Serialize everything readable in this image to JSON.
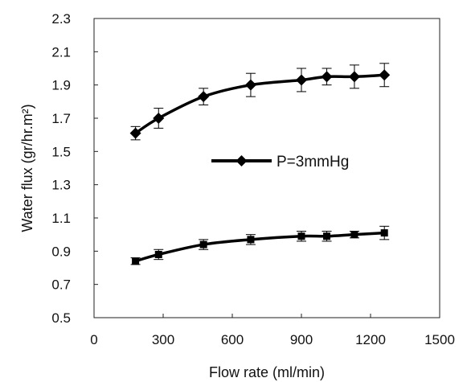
{
  "chart_data": {
    "type": "line",
    "xlabel": "Flow rate (ml/min)",
    "ylabel": "Water flux (gr/hr.m²)",
    "xlim": [
      0,
      1500
    ],
    "ylim": [
      0.5,
      2.3
    ],
    "x_ticks": [
      "0",
      "300",
      "600",
      "900",
      "1200",
      "1500"
    ],
    "y_ticks": [
      "0.5",
      "0.7",
      "0.9",
      "1.1",
      "1.3",
      "1.5",
      "1.7",
      "1.9",
      "2.1",
      "2.3"
    ],
    "grid": false,
    "legend_position": "center-right",
    "series": [
      {
        "name": "P=3mmHg",
        "marker": "diamond",
        "color": "#000000",
        "x": [
          180,
          280,
          475,
          680,
          900,
          1010,
          1130,
          1260
        ],
        "y": [
          1.61,
          1.7,
          1.83,
          1.9,
          1.93,
          1.95,
          1.95,
          1.96
        ],
        "error": [
          0.04,
          0.06,
          0.05,
          0.07,
          0.07,
          0.05,
          0.07,
          0.07
        ]
      },
      {
        "marker": "square",
        "color": "#000000",
        "x": [
          180,
          280,
          475,
          680,
          900,
          1010,
          1130,
          1260
        ],
        "y": [
          0.84,
          0.88,
          0.94,
          0.97,
          0.99,
          0.99,
          1.0,
          1.01
        ],
        "error": [
          0.02,
          0.03,
          0.03,
          0.03,
          0.03,
          0.03,
          0.02,
          0.04
        ]
      }
    ]
  }
}
